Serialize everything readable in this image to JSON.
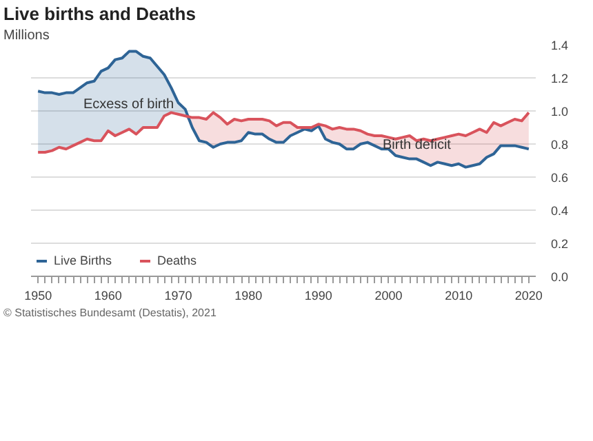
{
  "chart_data": {
    "type": "line",
    "title": "Live births and Deaths",
    "subtitle": "Millions",
    "x": [
      1950,
      1951,
      1952,
      1953,
      1954,
      1955,
      1956,
      1957,
      1958,
      1959,
      1960,
      1961,
      1962,
      1963,
      1964,
      1965,
      1966,
      1967,
      1968,
      1969,
      1970,
      1971,
      1972,
      1973,
      1974,
      1975,
      1976,
      1977,
      1978,
      1979,
      1980,
      1981,
      1982,
      1983,
      1984,
      1985,
      1986,
      1987,
      1988,
      1989,
      1990,
      1991,
      1992,
      1993,
      1994,
      1995,
      1996,
      1997,
      1998,
      1999,
      2000,
      2001,
      2002,
      2003,
      2004,
      2005,
      2006,
      2007,
      2008,
      2009,
      2010,
      2011,
      2012,
      2013,
      2014,
      2015,
      2016,
      2017,
      2018,
      2019,
      2020
    ],
    "series": [
      {
        "name": "Live Births",
        "color": "#2e6496",
        "lower": [
          0.75,
          0.75,
          0.76,
          0.78,
          0.77,
          0.79,
          0.81,
          0.83,
          0.82,
          0.82,
          0.88,
          0.85,
          0.87,
          0.89,
          0.86,
          0.9,
          0.9,
          0.9,
          0.97,
          0.99,
          0.98,
          0.97,
          0.9,
          0.82,
          0.81,
          0.78,
          0.8,
          0.81,
          0.81,
          0.82,
          0.87,
          0.86,
          0.86,
          0.83,
          0.81,
          0.81,
          0.85,
          0.87,
          0.89,
          0.88,
          0.91,
          0.83,
          0.81,
          0.8,
          0.77,
          0.77,
          0.8,
          0.81,
          0.79,
          0.77,
          0.77,
          0.73,
          0.72,
          0.71,
          0.71,
          0.69,
          0.67,
          0.69,
          0.68,
          0.67,
          0.68,
          0.66,
          0.67,
          0.68,
          0.72,
          0.74,
          0.79,
          0.79,
          0.79,
          0.78,
          0.77
        ],
        "upper": [
          1.12,
          1.11,
          1.11,
          1.1,
          1.11,
          1.11,
          1.14,
          1.17,
          1.18,
          1.24,
          1.26,
          1.31,
          1.32,
          1.36,
          1.36,
          1.33,
          1.32,
          1.27,
          1.22,
          1.14,
          1.05,
          1.01,
          0.9,
          0.82,
          0.81,
          0.78,
          0.8,
          0.81,
          0.81,
          0.82,
          0.87,
          0.86,
          0.86,
          0.83,
          0.81,
          0.81,
          0.85,
          0.87,
          0.89,
          0.88,
          0.91,
          0.83,
          0.81,
          0.8,
          0.77,
          0.77,
          0.8,
          0.81,
          0.79,
          0.77,
          0.77,
          0.73,
          0.72,
          0.71,
          0.71,
          0.69,
          0.67,
          0.69,
          0.68,
          0.67,
          0.68,
          0.66,
          0.67,
          0.68,
          0.72,
          0.74,
          0.79,
          0.79,
          0.79,
          0.78,
          0.77
        ],
        "values": [
          1.12,
          1.11,
          1.11,
          1.1,
          1.11,
          1.11,
          1.14,
          1.17,
          1.18,
          1.24,
          1.26,
          1.31,
          1.32,
          1.36,
          1.36,
          1.33,
          1.32,
          1.27,
          1.22,
          1.14,
          1.05,
          1.01,
          0.9,
          0.82,
          0.81,
          0.78,
          0.8,
          0.81,
          0.81,
          0.82,
          0.87,
          0.86,
          0.86,
          0.83,
          0.81,
          0.81,
          0.85,
          0.87,
          0.89,
          0.88,
          0.91,
          0.83,
          0.81,
          0.8,
          0.77,
          0.77,
          0.8,
          0.81,
          0.79,
          0.77,
          0.77,
          0.73,
          0.72,
          0.71,
          0.71,
          0.69,
          0.67,
          0.69,
          0.68,
          0.67,
          0.68,
          0.66,
          0.67,
          0.68,
          0.72,
          0.74,
          0.79,
          0.79,
          0.79,
          0.78,
          0.77
        ]
      },
      {
        "name": "Deaths",
        "color": "#d9535c",
        "lower": [
          0.75,
          0.75,
          0.76,
          0.78,
          0.77,
          0.79,
          0.81,
          0.83,
          0.82,
          0.82,
          0.88,
          0.85,
          0.87,
          0.89,
          0.86,
          0.9,
          0.9,
          0.9,
          0.97,
          0.99,
          0.98,
          0.97,
          0.9,
          0.82,
          0.81,
          0.78,
          0.8,
          0.81,
          0.81,
          0.82,
          0.87,
          0.86,
          0.86,
          0.83,
          0.81,
          0.81,
          0.85,
          0.87,
          0.89,
          0.88,
          0.91,
          0.83,
          0.81,
          0.8,
          0.77,
          0.77,
          0.8,
          0.81,
          0.79,
          0.77,
          0.77,
          0.73,
          0.72,
          0.71,
          0.71,
          0.69,
          0.67,
          0.69,
          0.68,
          0.67,
          0.68,
          0.66,
          0.67,
          0.68,
          0.72,
          0.74,
          0.79,
          0.79,
          0.79,
          0.78,
          0.77
        ],
        "upper": [
          0.75,
          0.75,
          0.76,
          0.78,
          0.77,
          0.79,
          0.81,
          0.83,
          0.82,
          0.82,
          0.88,
          0.85,
          0.87,
          0.89,
          0.86,
          0.9,
          0.9,
          0.9,
          0.97,
          0.99,
          0.98,
          0.97,
          0.96,
          0.96,
          0.95,
          0.99,
          0.96,
          0.92,
          0.95,
          0.94,
          0.95,
          0.95,
          0.95,
          0.94,
          0.91,
          0.93,
          0.93,
          0.9,
          0.9,
          0.9,
          0.92,
          0.91,
          0.89,
          0.9,
          0.89,
          0.89,
          0.88,
          0.86,
          0.85,
          0.85,
          0.84,
          0.83,
          0.84,
          0.85,
          0.82,
          0.83,
          0.82,
          0.83,
          0.84,
          0.85,
          0.86,
          0.85,
          0.87,
          0.89,
          0.87,
          0.93,
          0.91,
          0.93,
          0.95,
          0.94,
          0.99
        ],
        "values": [
          0.75,
          0.75,
          0.76,
          0.78,
          0.77,
          0.79,
          0.81,
          0.83,
          0.82,
          0.82,
          0.88,
          0.85,
          0.87,
          0.89,
          0.86,
          0.9,
          0.9,
          0.9,
          0.97,
          0.99,
          0.98,
          0.97,
          0.96,
          0.96,
          0.95,
          0.99,
          0.96,
          0.92,
          0.95,
          0.94,
          0.95,
          0.95,
          0.95,
          0.94,
          0.91,
          0.93,
          0.93,
          0.9,
          0.9,
          0.9,
          0.92,
          0.91,
          0.89,
          0.9,
          0.89,
          0.89,
          0.88,
          0.86,
          0.85,
          0.85,
          0.84,
          0.83,
          0.84,
          0.85,
          0.82,
          0.83,
          0.82,
          0.83,
          0.84,
          0.85,
          0.86,
          0.85,
          0.87,
          0.89,
          0.87,
          0.93,
          0.91,
          0.93,
          0.95,
          0.94,
          0.99
        ]
      }
    ],
    "xlim": [
      1949,
      2021
    ],
    "xticks": [
      1950,
      1960,
      1970,
      1980,
      1990,
      2000,
      2010,
      2020
    ],
    "ylim": [
      0,
      1.4
    ],
    "yticks": [
      {
        "value": 0,
        "label": "0.0"
      },
      0.2,
      0.4,
      0.6,
      0.8,
      {
        "value": 1,
        "label": "1.0"
      },
      1.2,
      1.4
    ],
    "grid": "y",
    "legend": "bottom left",
    "marker": "none",
    "line_style": "solid",
    "annotations": [
      "Ecxess of birth",
      "Birth deficit",
      "© Statistisches Bundesamt (Destatis), 2021"
    ]
  }
}
